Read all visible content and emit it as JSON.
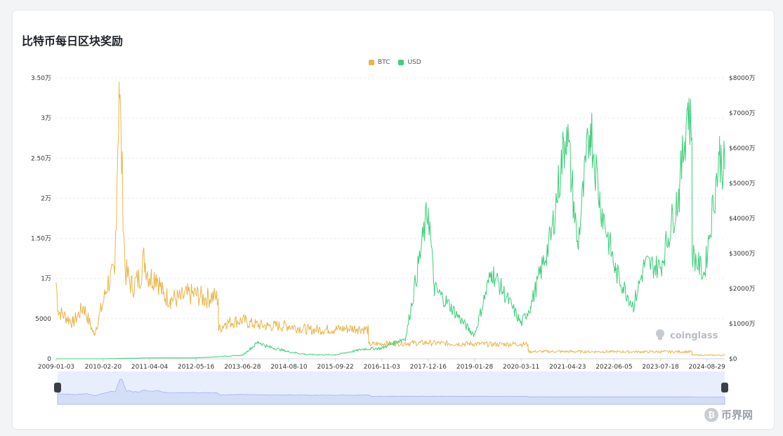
{
  "page": {
    "title": "比特币每日区块奖励",
    "watermark": "coinglass",
    "footer_logo": "币界网",
    "footer_logo_glyph": "₿"
  },
  "colors": {
    "btc": "#e8b64a",
    "usd": "#3ecf7a",
    "grid": "#eeeeee",
    "axis_text": "#333333",
    "navigator_fill": "#e8eefc",
    "navigator_line": "#9db4ee",
    "handle": "#3a3f4a"
  },
  "chart_data": {
    "type": "line",
    "legend": [
      "BTC",
      "USD"
    ],
    "legend_position": "top-center",
    "x_ticks": [
      "2009-01-03",
      "2010-02-20",
      "2011-04-04",
      "2012-05-16",
      "2013-06-28",
      "2014-08-10",
      "2015-09-22",
      "2016-11-03",
      "2017-12-16",
      "2019-01-28",
      "2020-03-11",
      "2021-04-23",
      "2022-06-05",
      "2023-07-18",
      "2024-08-29"
    ],
    "y_left_ticks": [
      "0",
      "5000",
      "1万",
      "1.50万",
      "2万",
      "2.50万",
      "3万",
      "3.50万"
    ],
    "y_left_range": [
      0,
      35000
    ],
    "y_right_ticks": [
      "$0",
      "$1000万",
      "$2000万",
      "$3000万",
      "$4000万",
      "$5000万",
      "$6000万",
      "$7000万",
      "$8000万"
    ],
    "y_right_range": [
      0,
      80000000
    ],
    "grid": true,
    "series": [
      {
        "name": "BTC",
        "axis": "left",
        "x": [
          "2009-01-03",
          "2009-01-20",
          "2009-03-01",
          "2009-06-01",
          "2009-09-01",
          "2009-12-01",
          "2010-02-20",
          "2010-04-01",
          "2010-06-01",
          "2010-07-10",
          "2010-09-01",
          "2010-11-01",
          "2011-01-01",
          "2011-02-15",
          "2011-04-04",
          "2011-06-01",
          "2011-08-01",
          "2011-10-01",
          "2012-01-01",
          "2012-03-01",
          "2012-05-16",
          "2012-08-01",
          "2012-10-01",
          "2012-11-27",
          "2012-11-29",
          "2013-02-01",
          "2013-06-28",
          "2013-10-01",
          "2014-02-01",
          "2014-08-10",
          "2015-02-01",
          "2015-09-22",
          "2016-04-01",
          "2016-07-08",
          "2016-07-10",
          "2017-01-01",
          "2017-12-16",
          "2018-06-01",
          "2019-01-28",
          "2019-08-01",
          "2020-03-11",
          "2020-05-10",
          "2020-05-12",
          "2021-04-23",
          "2022-06-05",
          "2023-07-18",
          "2024-04-19",
          "2024-04-21",
          "2024-08-29",
          "2025-02-01"
        ],
        "values": [
          9500,
          6000,
          5500,
          4500,
          6500,
          3000,
          7000,
          9500,
          10500,
          34500,
          11000,
          9000,
          10000,
          12500,
          10000,
          10500,
          8000,
          7500,
          7500,
          8000,
          8000,
          7500,
          7800,
          7500,
          3600,
          4500,
          4800,
          4300,
          4100,
          4100,
          3600,
          3700,
          3800,
          3600,
          1800,
          1900,
          2000,
          1900,
          1850,
          1800,
          1850,
          1800,
          900,
          900,
          880,
          870,
          880,
          450,
          440,
          450
        ]
      },
      {
        "name": "USD",
        "axis": "right",
        "x": [
          "2009-01-03",
          "2010-02-20",
          "2011-04-04",
          "2012-05-16",
          "2013-06-28",
          "2013-11-15",
          "2014-02-01",
          "2014-08-10",
          "2015-01-15",
          "2015-09-22",
          "2016-06-01",
          "2016-11-03",
          "2017-06-01",
          "2017-12-16",
          "2018-02-06",
          "2018-06-01",
          "2018-12-15",
          "2019-01-28",
          "2019-06-26",
          "2020-03-12",
          "2020-06-01",
          "2020-12-01",
          "2021-04-14",
          "2021-07-20",
          "2021-11-10",
          "2022-02-01",
          "2022-06-18",
          "2022-11-21",
          "2023-03-01",
          "2023-07-18",
          "2024-01-01",
          "2024-03-14",
          "2024-04-19",
          "2024-04-21",
          "2024-08-05",
          "2024-12-17",
          "2025-02-01"
        ],
        "values": [
          0,
          0,
          250000,
          250000,
          1000000,
          4800000,
          3500000,
          2000000,
          1200000,
          1100000,
          2800000,
          3000000,
          6000000,
          43000000,
          20000000,
          16000000,
          8000000,
          7000000,
          25000000,
          10000000,
          15000000,
          35000000,
          66000000,
          32000000,
          67000000,
          45000000,
          25000000,
          15000000,
          27000000,
          26000000,
          48000000,
          73000000,
          63000000,
          30000000,
          24000000,
          58000000,
          54000000
        ]
      }
    ]
  }
}
